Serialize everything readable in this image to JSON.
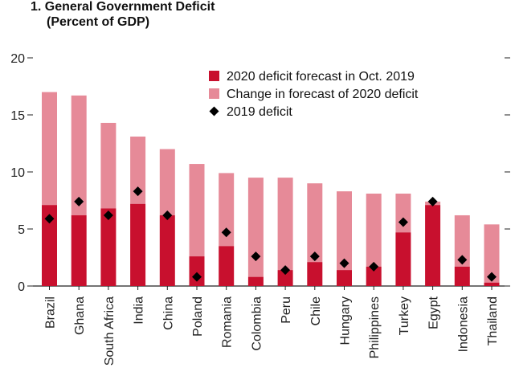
{
  "chart_data": {
    "type": "bar",
    "stacked": true,
    "title": "1. General Government Deficit",
    "subtitle": "(Percent of GDP)",
    "categories": [
      "Brazil",
      "Ghana",
      "South Africa",
      "India",
      "China",
      "Poland",
      "Romania",
      "Colombia",
      "Peru",
      "Chile",
      "Hungary",
      "Philippines",
      "Turkey",
      "Egypt",
      "Indonesia",
      "Thailand"
    ],
    "series": [
      {
        "name": "2020 deficit forecast in Oct. 2019",
        "kind": "bar",
        "color": "#c8102e",
        "values": [
          7.1,
          6.2,
          6.8,
          7.2,
          6.2,
          2.6,
          3.5,
          0.8,
          1.4,
          2.1,
          1.4,
          1.7,
          4.7,
          7.1,
          1.7,
          0.3
        ]
      },
      {
        "name": "Change in forecast of 2020 deficit",
        "kind": "bar",
        "color": "#e68a98",
        "values": [
          9.9,
          10.5,
          7.5,
          5.9,
          5.8,
          8.1,
          6.4,
          8.7,
          8.1,
          6.9,
          6.9,
          6.4,
          3.4,
          0.3,
          4.5,
          5.1
        ]
      },
      {
        "name": "2019 deficit",
        "kind": "marker",
        "marker": "diamond",
        "color": "#000000",
        "values": [
          5.9,
          7.4,
          6.2,
          8.3,
          6.2,
          0.8,
          4.7,
          2.6,
          1.4,
          2.6,
          2.0,
          1.7,
          5.6,
          7.4,
          2.3,
          0.8
        ]
      }
    ],
    "ylim": [
      0,
      20
    ],
    "yticks": [
      0,
      5,
      10,
      15,
      20
    ],
    "xlabel": "",
    "ylabel": "",
    "legend_position": "top-right",
    "grid": false
  }
}
